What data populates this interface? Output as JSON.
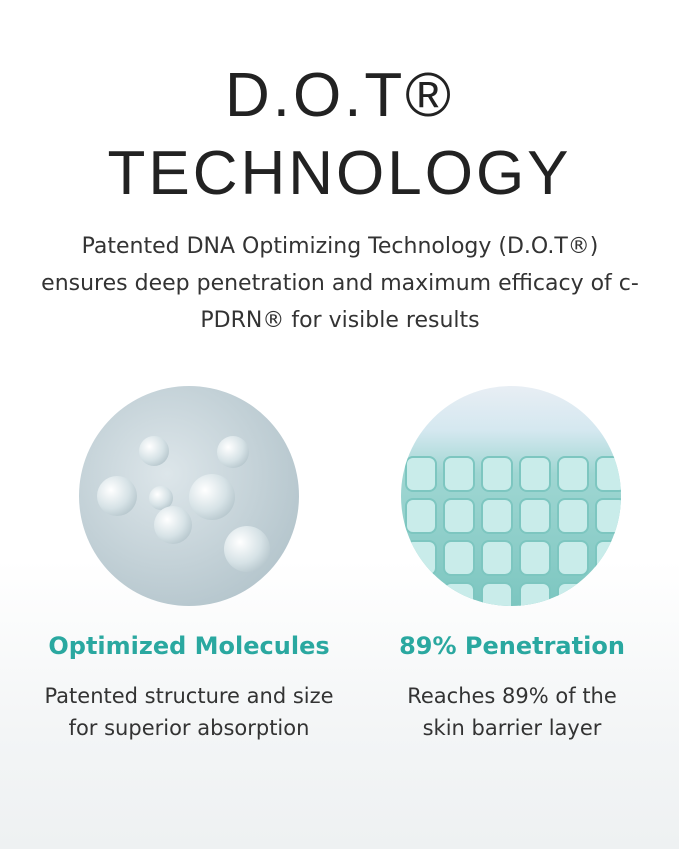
{
  "title": {
    "line1": "D.O.T®",
    "line2": "TECHNOLOGY"
  },
  "description": "Patented DNA Optimizing Technology (D.O.T®) ensures deep penetration and maximum efficacy of c-PDRN® for visible results",
  "features": [
    {
      "heading": "Optimized Molecules",
      "text": "Patented structure and size for superior absorption"
    },
    {
      "heading": "89% Penetration",
      "text": "Reaches 89% of the skin barrier layer"
    }
  ],
  "colors": {
    "accent": "#2aa8a0",
    "text": "#333333"
  }
}
